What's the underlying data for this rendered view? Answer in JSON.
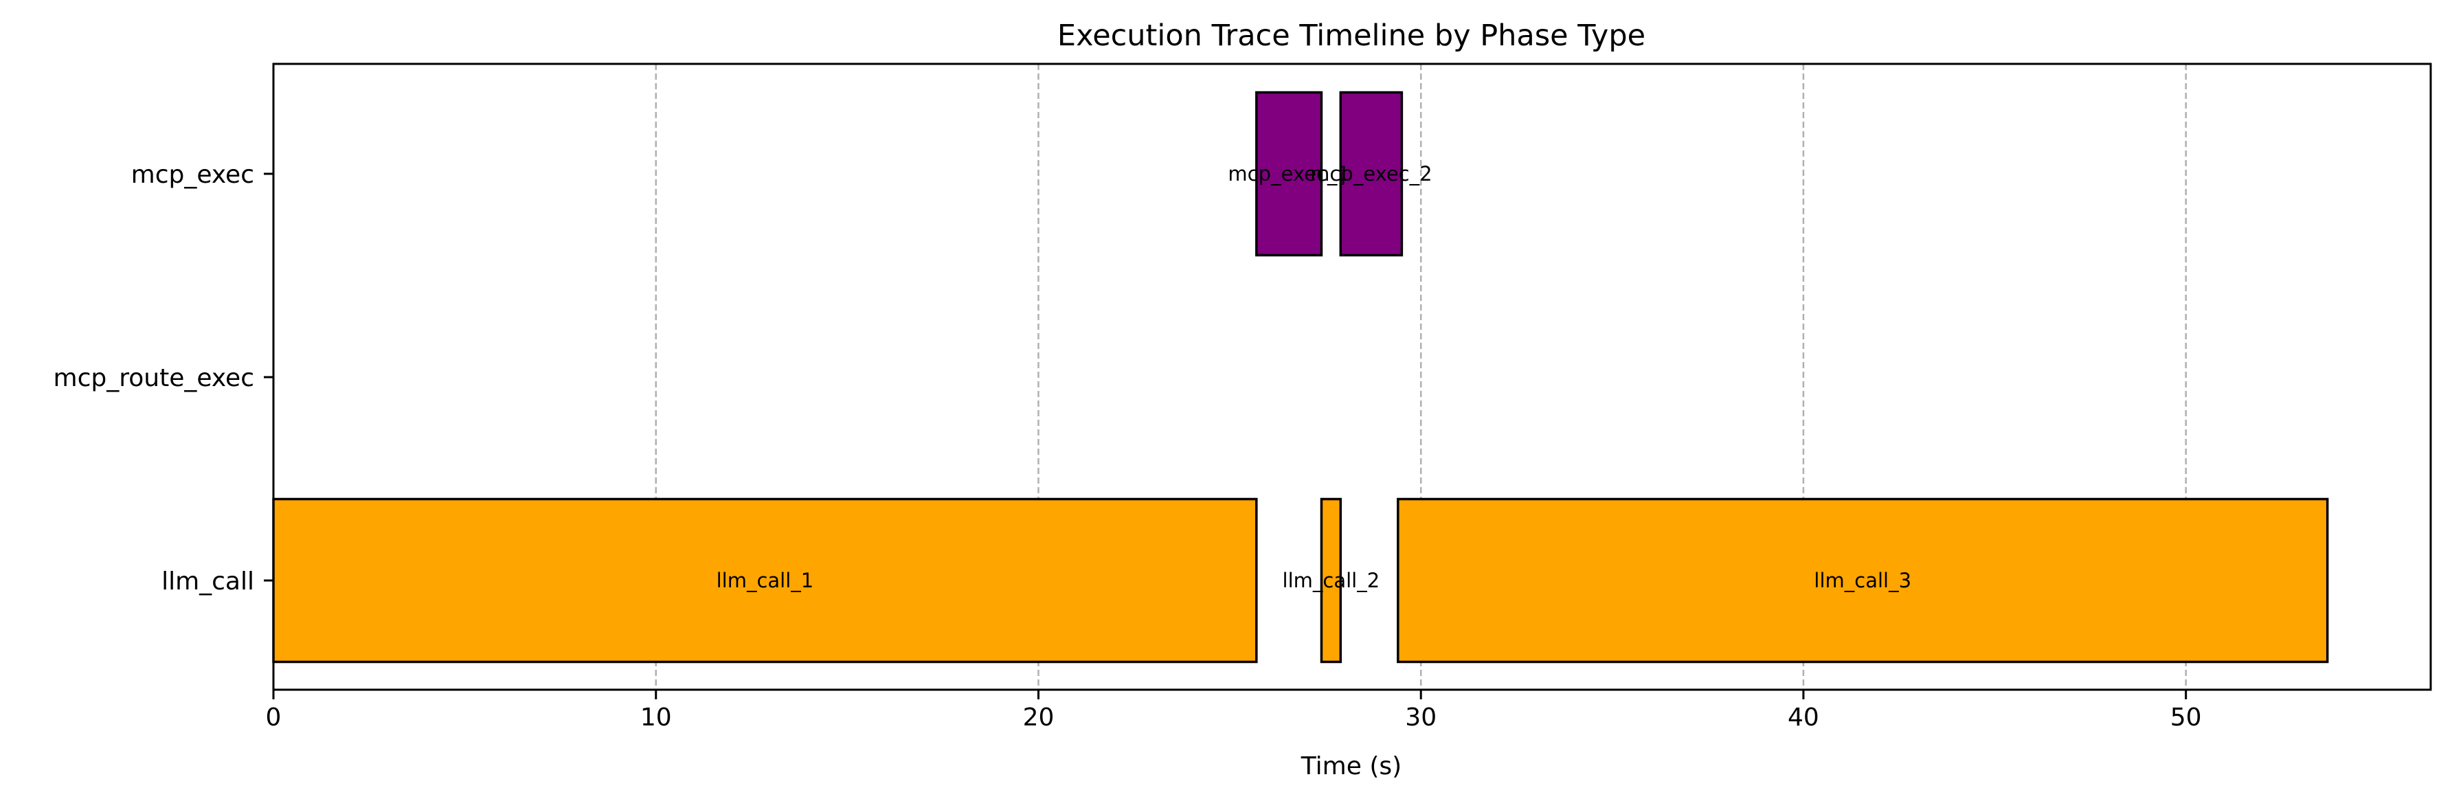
{
  "chart_data": {
    "type": "bar",
    "orientation": "horizontal-timeline",
    "title": "Execution Trace Timeline by Phase Type",
    "xlabel": "Time (s)",
    "ylabel": "",
    "xlim": [
      0,
      56.4
    ],
    "xticks": [
      0,
      10,
      20,
      30,
      40,
      50
    ],
    "categories": [
      "mcp_exec",
      "mcp_route_exec",
      "llm_call"
    ],
    "grid": "x-dashed",
    "colors": {
      "llm_call": "#FFA500",
      "mcp_exec": "#800080"
    },
    "segments": [
      {
        "label": "llm_call_1",
        "category": "llm_call",
        "start": 0.0,
        "end": 25.7
      },
      {
        "label": "llm_call_2",
        "category": "llm_call",
        "start": 27.4,
        "end": 27.9
      },
      {
        "label": "llm_call_3",
        "category": "llm_call",
        "start": 29.4,
        "end": 53.7
      },
      {
        "label": "mcp_exec_1",
        "category": "mcp_exec",
        "start": 25.7,
        "end": 27.4
      },
      {
        "label": "mcp_exec_2",
        "category": "mcp_exec",
        "start": 27.9,
        "end": 29.5
      }
    ]
  }
}
